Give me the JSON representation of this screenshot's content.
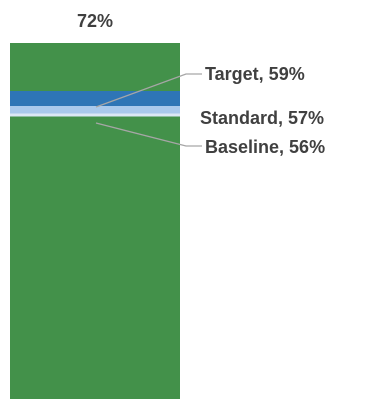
{
  "chart_data": {
    "type": "bar",
    "title": "",
    "xlabel": "",
    "ylabel": "",
    "ylim": [
      0,
      72
    ],
    "grid": false,
    "bar": {
      "value": 72,
      "label": "72%",
      "color": "#43914a"
    },
    "markers": [
      {
        "name": "Target",
        "value": 59,
        "label": "Target, 59%",
        "color": "#2e75b6",
        "band_from": 57
      },
      {
        "name": "Standard",
        "value": 57,
        "label": "Standard, 57%",
        "color": "#a9c9ec",
        "band_from": 56
      },
      {
        "name": "Baseline",
        "value": 56,
        "label": "Baseline, 56%",
        "color": "#dbe8f5",
        "band_from": 55.6
      }
    ]
  }
}
